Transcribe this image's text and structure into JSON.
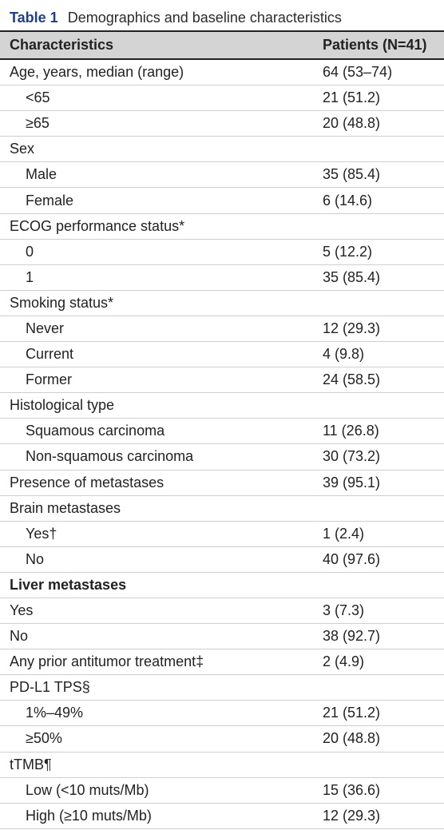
{
  "table": {
    "label": "Table 1",
    "title": "Demographics and baseline characteristics",
    "headers": [
      "Characteristics",
      "Patients (N=41)"
    ],
    "rows": [
      {
        "label": "Age, years, median (range)",
        "value": "64 (53–74)",
        "indent": false,
        "bold": false
      },
      {
        "label": "<65",
        "value": "21 (51.2)",
        "indent": true,
        "bold": false
      },
      {
        "label": "≥65",
        "value": "20 (48.8)",
        "indent": true,
        "bold": false
      },
      {
        "label": "Sex",
        "value": "",
        "indent": false,
        "bold": false
      },
      {
        "label": "Male",
        "value": "35 (85.4)",
        "indent": true,
        "bold": false
      },
      {
        "label": "Female",
        "value": "6 (14.6)",
        "indent": true,
        "bold": false
      },
      {
        "label": "ECOG performance status*",
        "value": "",
        "indent": false,
        "bold": false
      },
      {
        "label": "0",
        "value": "5 (12.2)",
        "indent": true,
        "bold": false
      },
      {
        "label": "1",
        "value": "35 (85.4)",
        "indent": true,
        "bold": false
      },
      {
        "label": "Smoking status*",
        "value": "",
        "indent": false,
        "bold": false
      },
      {
        "label": "Never",
        "value": "12 (29.3)",
        "indent": true,
        "bold": false
      },
      {
        "label": "Current",
        "value": "4 (9.8)",
        "indent": true,
        "bold": false
      },
      {
        "label": "Former",
        "value": "24 (58.5)",
        "indent": true,
        "bold": false
      },
      {
        "label": "Histological type",
        "value": "",
        "indent": false,
        "bold": false
      },
      {
        "label": "Squamous carcinoma",
        "value": "11 (26.8)",
        "indent": true,
        "bold": false
      },
      {
        "label": "Non-squamous carcinoma",
        "value": "30 (73.2)",
        "indent": true,
        "bold": false
      },
      {
        "label": "Presence of metastases",
        "value": "39 (95.1)",
        "indent": false,
        "bold": false
      },
      {
        "label": "Brain metastases",
        "value": "",
        "indent": false,
        "bold": false
      },
      {
        "label": "Yes†",
        "value": "1 (2.4)",
        "indent": true,
        "bold": false
      },
      {
        "label": "No",
        "value": "40 (97.6)",
        "indent": true,
        "bold": false
      },
      {
        "label": "Liver metastases",
        "value": "",
        "indent": false,
        "bold": true
      },
      {
        "label": "Yes",
        "value": "3 (7.3)",
        "indent": false,
        "bold": false
      },
      {
        "label": "No",
        "value": "38 (92.7)",
        "indent": false,
        "bold": false
      },
      {
        "label": "Any prior antitumor treatment‡",
        "value": "2 (4.9)",
        "indent": false,
        "bold": false
      },
      {
        "label": "PD-L1 TPS§",
        "value": "",
        "indent": false,
        "bold": false
      },
      {
        "label": "1%–49%",
        "value": "21 (51.2)",
        "indent": true,
        "bold": false
      },
      {
        "label": "≥50%",
        "value": "20 (48.8)",
        "indent": true,
        "bold": false
      },
      {
        "label": "tTMB¶",
        "value": "",
        "indent": false,
        "bold": false
      },
      {
        "label": "Low (<10 muts/Mb)",
        "value": "15 (36.6)",
        "indent": true,
        "bold": false
      },
      {
        "label": "High (≥10 muts/Mb)",
        "value": "12 (29.3)",
        "indent": true,
        "bold": false
      }
    ]
  }
}
